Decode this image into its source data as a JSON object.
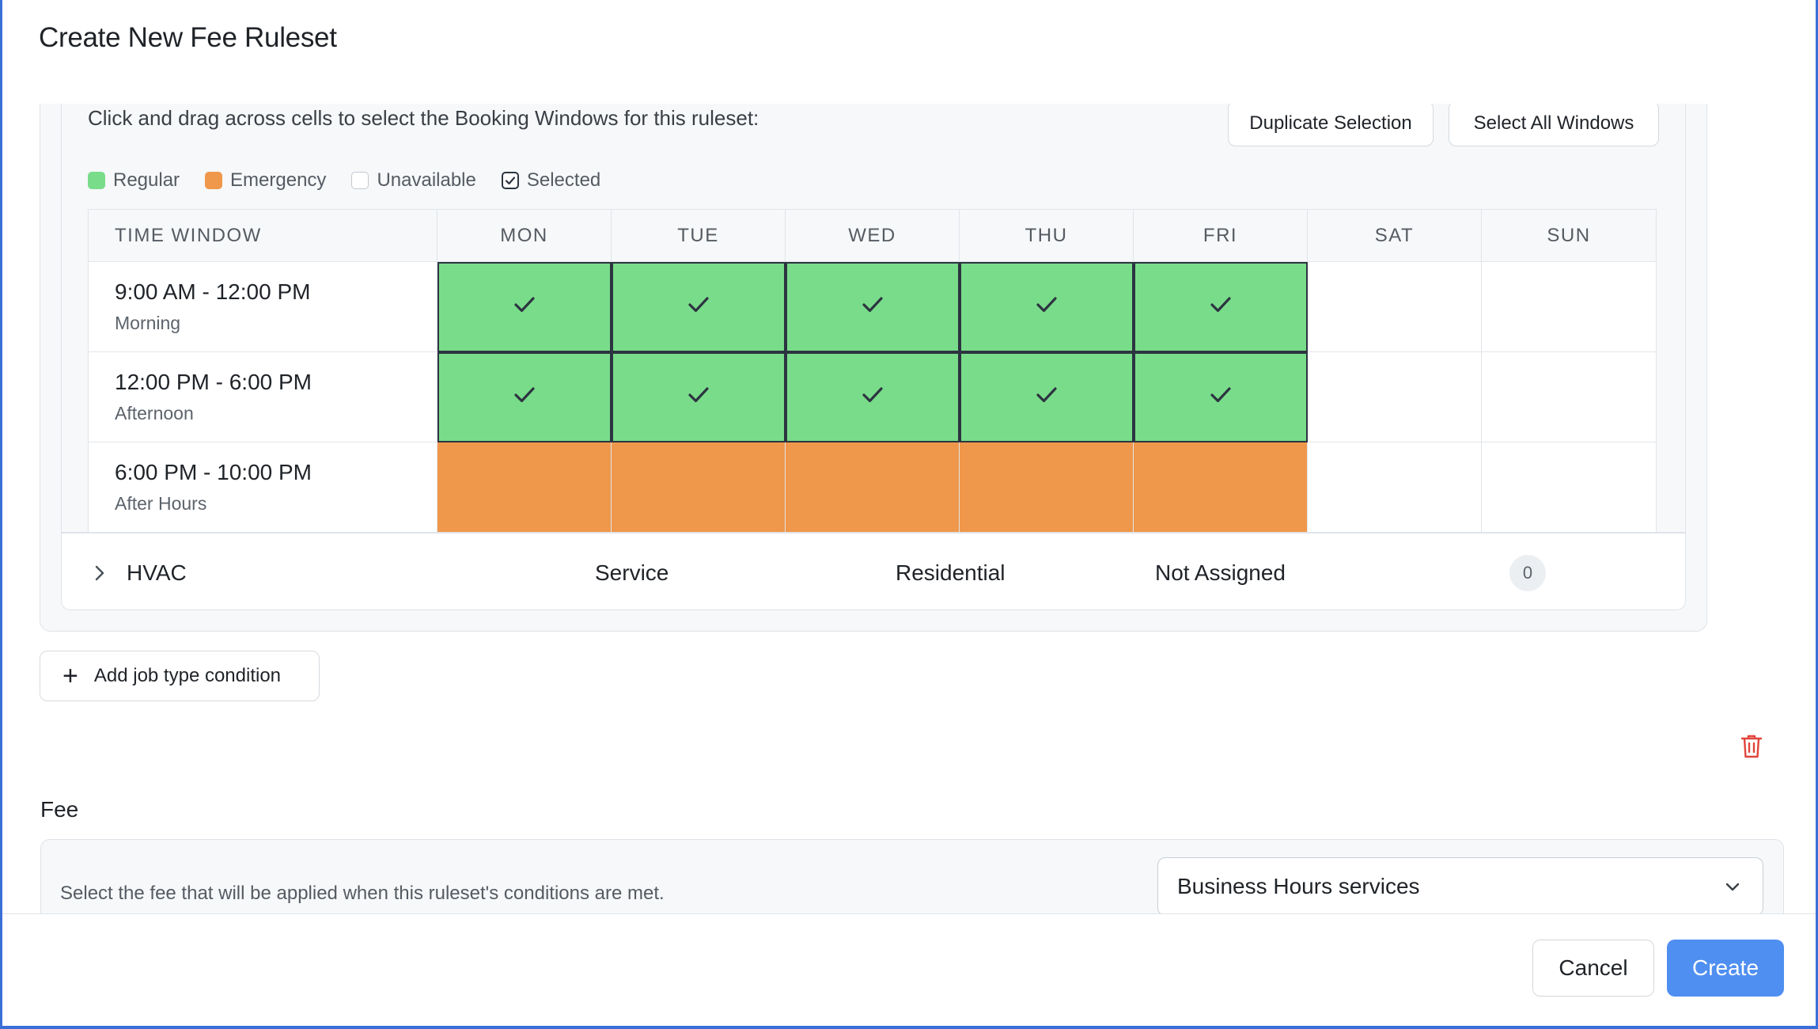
{
  "modal": {
    "title": "Create New Fee Ruleset"
  },
  "booking_windows": {
    "instructions": "Click and drag across cells to select the Booking Windows for this ruleset:",
    "duplicate_label": "Duplicate Selection",
    "select_all_label": "Select All Windows",
    "legend": [
      {
        "label": "Regular",
        "swatch": "regular",
        "color": "#79dc8a"
      },
      {
        "label": "Emergency",
        "swatch": "emergency",
        "color": "#ef974b"
      },
      {
        "label": "Unavailable",
        "swatch": "unavailable",
        "color": "#ffffff"
      },
      {
        "label": "Selected",
        "swatch": "selected",
        "color": "#2c3440"
      }
    ],
    "time_window_header": "TIME WINDOW",
    "days": [
      "MON",
      "TUE",
      "WED",
      "THU",
      "FRI",
      "SAT",
      "SUN"
    ],
    "rows": [
      {
        "range": "9:00 AM - 12:00 PM",
        "label": "Morning",
        "cells": [
          {
            "state": "regular",
            "selected": true
          },
          {
            "state": "regular",
            "selected": true
          },
          {
            "state": "regular",
            "selected": true
          },
          {
            "state": "regular",
            "selected": true
          },
          {
            "state": "regular",
            "selected": true
          },
          {
            "state": "unavailable",
            "selected": false
          },
          {
            "state": "unavailable",
            "selected": false
          }
        ]
      },
      {
        "range": "12:00 PM - 6:00 PM",
        "label": "Afternoon",
        "cells": [
          {
            "state": "regular",
            "selected": true
          },
          {
            "state": "regular",
            "selected": true
          },
          {
            "state": "regular",
            "selected": true
          },
          {
            "state": "regular",
            "selected": true
          },
          {
            "state": "regular",
            "selected": true
          },
          {
            "state": "unavailable",
            "selected": false
          },
          {
            "state": "unavailable",
            "selected": false
          }
        ]
      },
      {
        "range": "6:00 PM - 10:00 PM",
        "label": "After Hours",
        "cells": [
          {
            "state": "emergency",
            "selected": false
          },
          {
            "state": "emergency",
            "selected": false
          },
          {
            "state": "emergency",
            "selected": false
          },
          {
            "state": "emergency",
            "selected": false
          },
          {
            "state": "emergency",
            "selected": false
          },
          {
            "state": "unavailable",
            "selected": false
          },
          {
            "state": "unavailable",
            "selected": false
          }
        ]
      }
    ]
  },
  "job_condition": {
    "name": "HVAC",
    "type": "Service",
    "segment": "Residential",
    "assignment": "Not Assigned",
    "count": "0",
    "expand_icon": "chevron-right-icon"
  },
  "add_condition_label": "Add job type condition",
  "delete_icon": "trash-icon",
  "fee": {
    "label": "Fee",
    "description": "Select the fee that will be applied when this ruleset's conditions are met.",
    "selected": "Business Hours services"
  },
  "footer": {
    "cancel_label": "Cancel",
    "create_label": "Create"
  },
  "colors": {
    "accent": "#4f8ff1",
    "regular": "#79dc8a",
    "emergency": "#ef974b",
    "danger": "#e0453a"
  }
}
